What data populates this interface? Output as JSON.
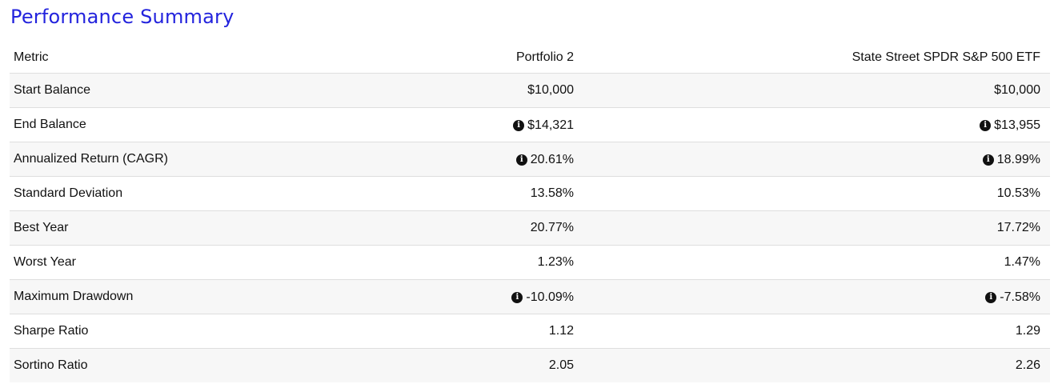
{
  "title": "Performance Summary",
  "table": {
    "headers": [
      "Metric",
      "Portfolio 2",
      "State Street SPDR S&P 500 ETF"
    ],
    "rows": [
      {
        "metric": "Start Balance",
        "p2": "$10,000",
        "spy": "$10,000",
        "p2_info": false,
        "spy_info": false
      },
      {
        "metric": "End Balance",
        "p2": "$14,321",
        "spy": "$13,955",
        "p2_info": true,
        "spy_info": true
      },
      {
        "metric": "Annualized Return (CAGR)",
        "p2": "20.61%",
        "spy": "18.99%",
        "p2_info": true,
        "spy_info": true
      },
      {
        "metric": "Standard Deviation",
        "p2": "13.58%",
        "spy": "10.53%",
        "p2_info": false,
        "spy_info": false
      },
      {
        "metric": "Best Year",
        "p2": "20.77%",
        "spy": "17.72%",
        "p2_info": false,
        "spy_info": false
      },
      {
        "metric": "Worst Year",
        "p2": "1.23%",
        "spy": "1.47%",
        "p2_info": false,
        "spy_info": false
      },
      {
        "metric": "Maximum Drawdown",
        "p2": "-10.09%",
        "spy": "-7.58%",
        "p2_info": true,
        "spy_info": true
      },
      {
        "metric": "Sharpe Ratio",
        "p2": "1.12",
        "spy": "1.29",
        "p2_info": false,
        "spy_info": false
      },
      {
        "metric": "Sortino Ratio",
        "p2": "2.05",
        "spy": "2.26",
        "p2_info": false,
        "spy_info": false
      }
    ]
  },
  "icons": {
    "info": "info-circle-icon",
    "info_glyph": "i"
  },
  "colors": {
    "title": "#2323dd",
    "row_alt": "#f7f7f7",
    "divider": "#dedede",
    "text": "#111111"
  }
}
